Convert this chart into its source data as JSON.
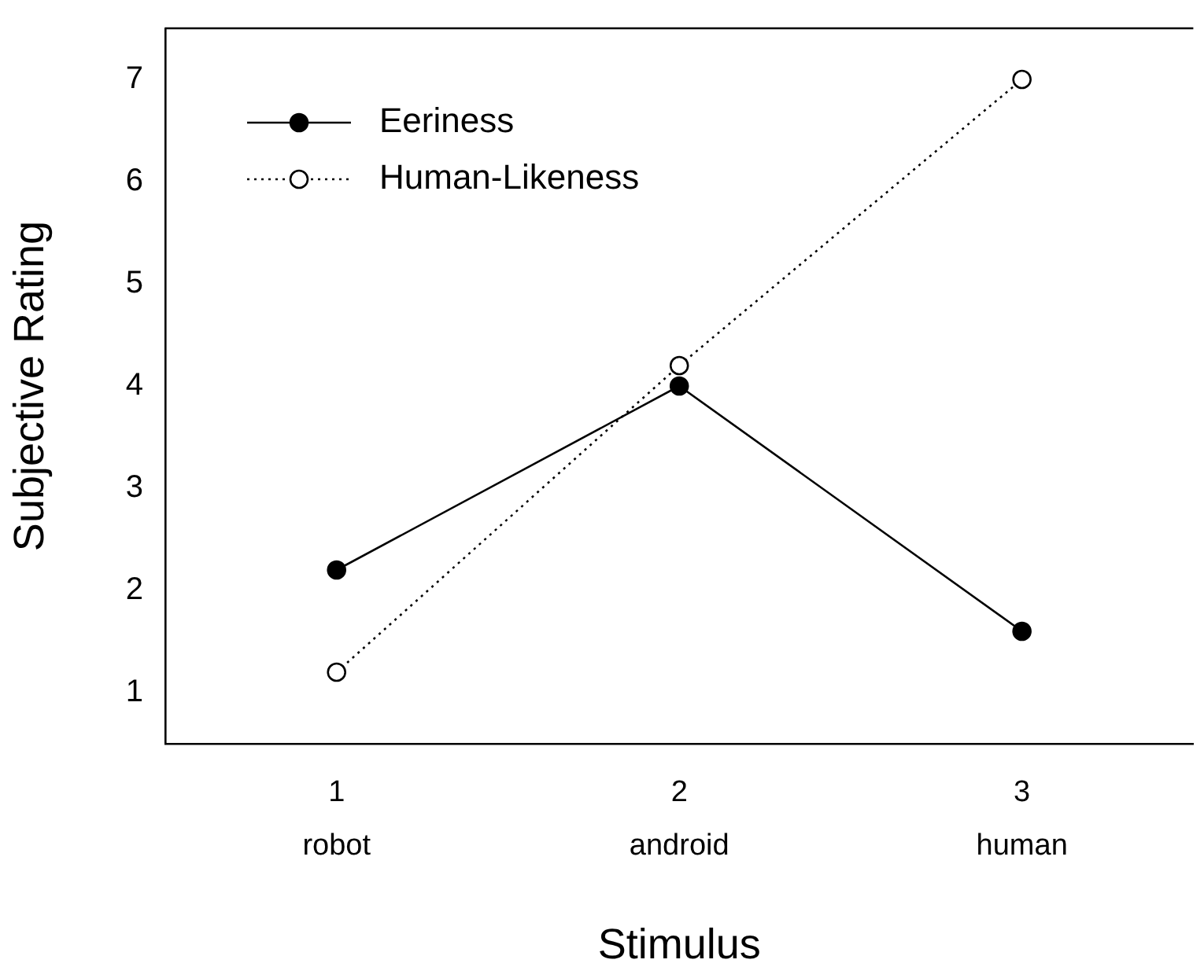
{
  "chart_data": {
    "type": "line",
    "xlabel": "Stimulus",
    "ylabel": "Subjective Rating",
    "x": [
      1,
      2,
      3
    ],
    "xlim": [
      0.5,
      3.5
    ],
    "xticks": [
      {
        "value": 1,
        "label": "1\nrobot"
      },
      {
        "value": 2,
        "label": "2\nandroid"
      },
      {
        "value": 3,
        "label": "3\nhuman"
      }
    ],
    "ylim": [
      0.5,
      7.5
    ],
    "yticks": [
      1,
      2,
      3,
      4,
      5,
      6,
      7
    ],
    "grid": false,
    "legend": "top left",
    "series": [
      {
        "name": "Eeriness",
        "color": "#000000",
        "line_style": "solid",
        "marker": "circle",
        "values": [
          2.2,
          4.0,
          1.6
        ]
      },
      {
        "name": "Human-Likeness",
        "color": "#000000",
        "line_style": "dotted",
        "marker": "circle",
        "values": [
          1.2,
          4.2,
          7.0
        ]
      }
    ]
  }
}
